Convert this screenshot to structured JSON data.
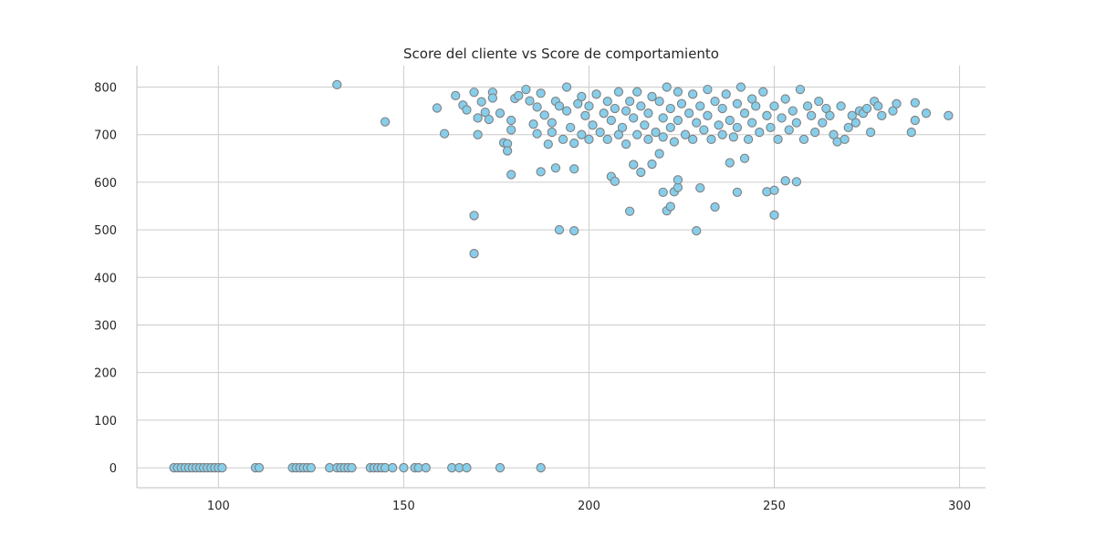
{
  "chart_data": {
    "type": "scatter",
    "title": "Score del cliente vs Score de comportamiento",
    "xlabel": "",
    "ylabel": "",
    "xlim": [
      78,
      307
    ],
    "ylim": [
      -42,
      845
    ],
    "x_ticks": [
      100,
      150,
      200,
      250,
      300
    ],
    "y_ticks": [
      0,
      100,
      200,
      300,
      400,
      500,
      600,
      700,
      800
    ],
    "grid": true,
    "marker_color": "#87ceeb",
    "marker_edge_color": "#808080",
    "points": [
      [
        88,
        0
      ],
      [
        89,
        0
      ],
      [
        90,
        0
      ],
      [
        91,
        0
      ],
      [
        92,
        0
      ],
      [
        93,
        0
      ],
      [
        94,
        0
      ],
      [
        95,
        0
      ],
      [
        96,
        0
      ],
      [
        97,
        0
      ],
      [
        98,
        0
      ],
      [
        99,
        0
      ],
      [
        100,
        0
      ],
      [
        101,
        0
      ],
      [
        110,
        0
      ],
      [
        111,
        0
      ],
      [
        120,
        0
      ],
      [
        121,
        0
      ],
      [
        122,
        0
      ],
      [
        123,
        0
      ],
      [
        124,
        0
      ],
      [
        125,
        0
      ],
      [
        130,
        0
      ],
      [
        132,
        0
      ],
      [
        133,
        0
      ],
      [
        134,
        0
      ],
      [
        135,
        0
      ],
      [
        136,
        0
      ],
      [
        141,
        0
      ],
      [
        142,
        0
      ],
      [
        143,
        0
      ],
      [
        144,
        0
      ],
      [
        145,
        0
      ],
      [
        147,
        0
      ],
      [
        150,
        0
      ],
      [
        153,
        0
      ],
      [
        154,
        0
      ],
      [
        156,
        0
      ],
      [
        163,
        0
      ],
      [
        165,
        0
      ],
      [
        167,
        0
      ],
      [
        176,
        0
      ],
      [
        187,
        0
      ],
      [
        132,
        805
      ],
      [
        145,
        727
      ],
      [
        169,
        450
      ],
      [
        169,
        530
      ],
      [
        192,
        500
      ],
      [
        196,
        498
      ],
      [
        229,
        498
      ],
      [
        250,
        531
      ],
      [
        211,
        539
      ],
      [
        221,
        540
      ],
      [
        222,
        549
      ],
      [
        234,
        548
      ],
      [
        220,
        579
      ],
      [
        223,
        580
      ],
      [
        224,
        589
      ],
      [
        230,
        588
      ],
      [
        240,
        579
      ],
      [
        248,
        580
      ],
      [
        250,
        583
      ],
      [
        253,
        603
      ],
      [
        256,
        601
      ],
      [
        224,
        605
      ],
      [
        179,
        616
      ],
      [
        187,
        622
      ],
      [
        191,
        630
      ],
      [
        196,
        628
      ],
      [
        206,
        612
      ],
      [
        207,
        602
      ],
      [
        212,
        637
      ],
      [
        214,
        621
      ],
      [
        217,
        638
      ],
      [
        219,
        660
      ],
      [
        238,
        641
      ],
      [
        242,
        650
      ],
      [
        159,
        756
      ],
      [
        161,
        702
      ],
      [
        164,
        782
      ],
      [
        166,
        762
      ],
      [
        167,
        752
      ],
      [
        169,
        789
      ],
      [
        170,
        735
      ],
      [
        170,
        700
      ],
      [
        171,
        769
      ],
      [
        172,
        747
      ],
      [
        173,
        732
      ],
      [
        174,
        789
      ],
      [
        174,
        777
      ],
      [
        176,
        745
      ],
      [
        177,
        683
      ],
      [
        178,
        681
      ],
      [
        178,
        666
      ],
      [
        179,
        710
      ],
      [
        179,
        730
      ],
      [
        180,
        776
      ],
      [
        181,
        782
      ],
      [
        183,
        795
      ],
      [
        184,
        771
      ],
      [
        185,
        722
      ],
      [
        186,
        758
      ],
      [
        186,
        702
      ],
      [
        187,
        787
      ],
      [
        188,
        741
      ],
      [
        189,
        680
      ],
      [
        190,
        705
      ],
      [
        190,
        725
      ],
      [
        191,
        770
      ],
      [
        192,
        760
      ],
      [
        193,
        690
      ],
      [
        194,
        750
      ],
      [
        194,
        800
      ],
      [
        195,
        715
      ],
      [
        196,
        682
      ],
      [
        197,
        765
      ],
      [
        198,
        700
      ],
      [
        198,
        780
      ],
      [
        199,
        740
      ],
      [
        200,
        690
      ],
      [
        200,
        760
      ],
      [
        201,
        720
      ],
      [
        202,
        785
      ],
      [
        203,
        705
      ],
      [
        204,
        745
      ],
      [
        205,
        690
      ],
      [
        205,
        770
      ],
      [
        206,
        730
      ],
      [
        207,
        755
      ],
      [
        208,
        700
      ],
      [
        208,
        790
      ],
      [
        209,
        715
      ],
      [
        210,
        750
      ],
      [
        210,
        680
      ],
      [
        211,
        770
      ],
      [
        212,
        735
      ],
      [
        213,
        700
      ],
      [
        213,
        790
      ],
      [
        214,
        760
      ],
      [
        215,
        720
      ],
      [
        216,
        745
      ],
      [
        216,
        690
      ],
      [
        217,
        780
      ],
      [
        218,
        705
      ],
      [
        219,
        770
      ],
      [
        220,
        735
      ],
      [
        220,
        695
      ],
      [
        221,
        800
      ],
      [
        222,
        755
      ],
      [
        222,
        715
      ],
      [
        223,
        685
      ],
      [
        224,
        790
      ],
      [
        224,
        730
      ],
      [
        225,
        765
      ],
      [
        226,
        700
      ],
      [
        227,
        745
      ],
      [
        228,
        785
      ],
      [
        228,
        690
      ],
      [
        229,
        725
      ],
      [
        230,
        760
      ],
      [
        231,
        710
      ],
      [
        232,
        795
      ],
      [
        232,
        740
      ],
      [
        233,
        690
      ],
      [
        234,
        770
      ],
      [
        235,
        720
      ],
      [
        236,
        755
      ],
      [
        236,
        700
      ],
      [
        237,
        785
      ],
      [
        238,
        730
      ],
      [
        239,
        695
      ],
      [
        240,
        765
      ],
      [
        240,
        715
      ],
      [
        241,
        800
      ],
      [
        242,
        745
      ],
      [
        243,
        690
      ],
      [
        244,
        775
      ],
      [
        244,
        725
      ],
      [
        245,
        760
      ],
      [
        246,
        705
      ],
      [
        247,
        790
      ],
      [
        248,
        740
      ],
      [
        249,
        715
      ],
      [
        250,
        760
      ],
      [
        251,
        690
      ],
      [
        252,
        735
      ],
      [
        253,
        775
      ],
      [
        254,
        710
      ],
      [
        255,
        750
      ],
      [
        256,
        725
      ],
      [
        257,
        795
      ],
      [
        258,
        690
      ],
      [
        259,
        760
      ],
      [
        260,
        740
      ],
      [
        261,
        705
      ],
      [
        262,
        770
      ],
      [
        263,
        725
      ],
      [
        264,
        755
      ],
      [
        265,
        740
      ],
      [
        266,
        700
      ],
      [
        267,
        685
      ],
      [
        268,
        760
      ],
      [
        269,
        690
      ],
      [
        270,
        715
      ],
      [
        271,
        740
      ],
      [
        272,
        725
      ],
      [
        273,
        750
      ],
      [
        274,
        745
      ],
      [
        275,
        755
      ],
      [
        276,
        705
      ],
      [
        277,
        770
      ],
      [
        278,
        760
      ],
      [
        279,
        740
      ],
      [
        282,
        750
      ],
      [
        283,
        765
      ],
      [
        287,
        705
      ],
      [
        288,
        730
      ],
      [
        288,
        767
      ],
      [
        291,
        745
      ],
      [
        297,
        740
      ]
    ]
  }
}
